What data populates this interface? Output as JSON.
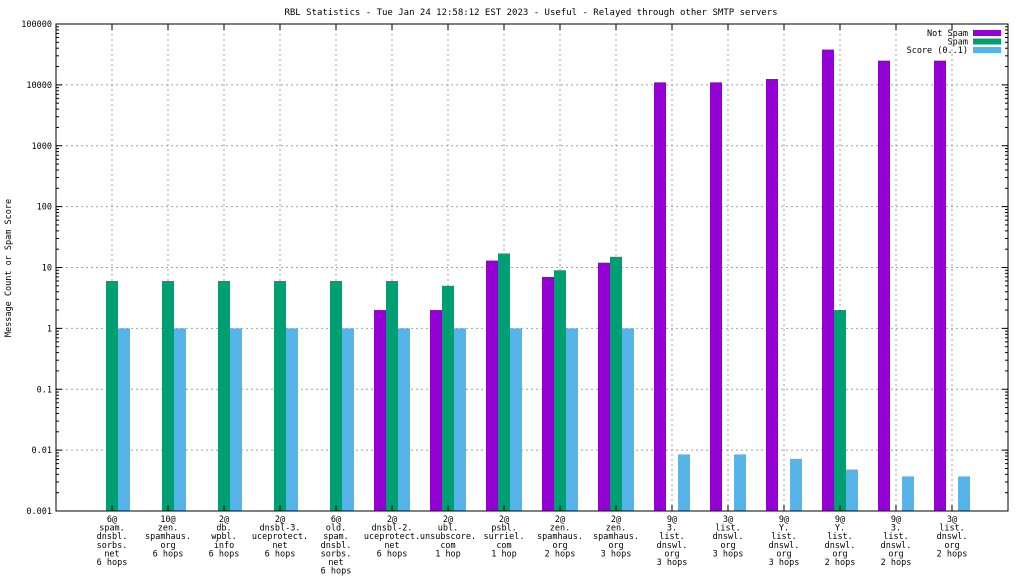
{
  "chart_data": {
    "type": "bar",
    "title": "RBL Statistics - Tue Jan 24 12:58:12 EST 2023 - Useful - Relayed through other SMTP servers",
    "ylabel": "Message Count or Spam Score",
    "xlabel": "",
    "yscale": "log",
    "ylim": [
      0.001,
      100000
    ],
    "grid": true,
    "legend_position": "top-right",
    "yticks": [
      "0.001",
      "0.01",
      "0.1",
      "1",
      "10",
      "100",
      "1000",
      "10000",
      "100000"
    ],
    "categories": [
      [
        "6@",
        "spam.",
        "dnsbl.",
        "sorbs.",
        "net",
        "6 hops"
      ],
      [
        "10@",
        "zen.",
        "spamhaus.",
        "org",
        "6 hops"
      ],
      [
        "2@",
        "db.",
        "wpbl.",
        "info",
        "6 hops"
      ],
      [
        "2@",
        "dnsbl-3.",
        "uceprotect.",
        "net",
        "6 hops"
      ],
      [
        "6@",
        "old.",
        "spam.",
        "dnsbl.",
        "sorbs.",
        "net",
        "6 hops"
      ],
      [
        "2@",
        "dnsbl-2.",
        "uceprotect.",
        "net",
        "6 hops"
      ],
      [
        "2@",
        "ubl.",
        "unsubscore.",
        "com",
        "1 hop"
      ],
      [
        "2@",
        "psbl.",
        "surriel.",
        "com",
        "1 hop"
      ],
      [
        "2@",
        "zen.",
        "spamhaus.",
        "org",
        "2 hops"
      ],
      [
        "2@",
        "zen.",
        "spamhaus.",
        "org",
        "3 hops"
      ],
      [
        "9@",
        "3.",
        "list.",
        "dnswl.",
        "org",
        "3 hops"
      ],
      [
        "3@",
        "list.",
        "dnswl.",
        "org",
        "3 hops"
      ],
      [
        "9@",
        "Y.",
        "list.",
        "dnswl.",
        "org",
        "3 hops"
      ],
      [
        "9@",
        "Y.",
        "list.",
        "dnswl.",
        "org",
        "2 hops"
      ],
      [
        "9@",
        "3.",
        "list.",
        "dnswl.",
        "org",
        "2 hops"
      ],
      [
        "3@",
        "list.",
        "dnswl.",
        "org",
        "2 hops"
      ]
    ],
    "series": [
      {
        "name": "Not Spam",
        "color": "#9400d3",
        "values": [
          null,
          null,
          null,
          null,
          null,
          2,
          2,
          13,
          7,
          12,
          11000,
          11000,
          12500,
          38000,
          25000,
          25000
        ]
      },
      {
        "name": "Spam",
        "color": "#009e73",
        "values": [
          6,
          6,
          6,
          6,
          6,
          6,
          5,
          17,
          9,
          15,
          null,
          null,
          null,
          2,
          null,
          null
        ]
      },
      {
        "name": "Score (0..1)",
        "color": "#56b4e9",
        "values": [
          1,
          1,
          1,
          1,
          1,
          1,
          1,
          1,
          1,
          1,
          0.0085,
          0.0085,
          0.0072,
          0.0048,
          0.0037,
          0.0037
        ]
      }
    ]
  }
}
